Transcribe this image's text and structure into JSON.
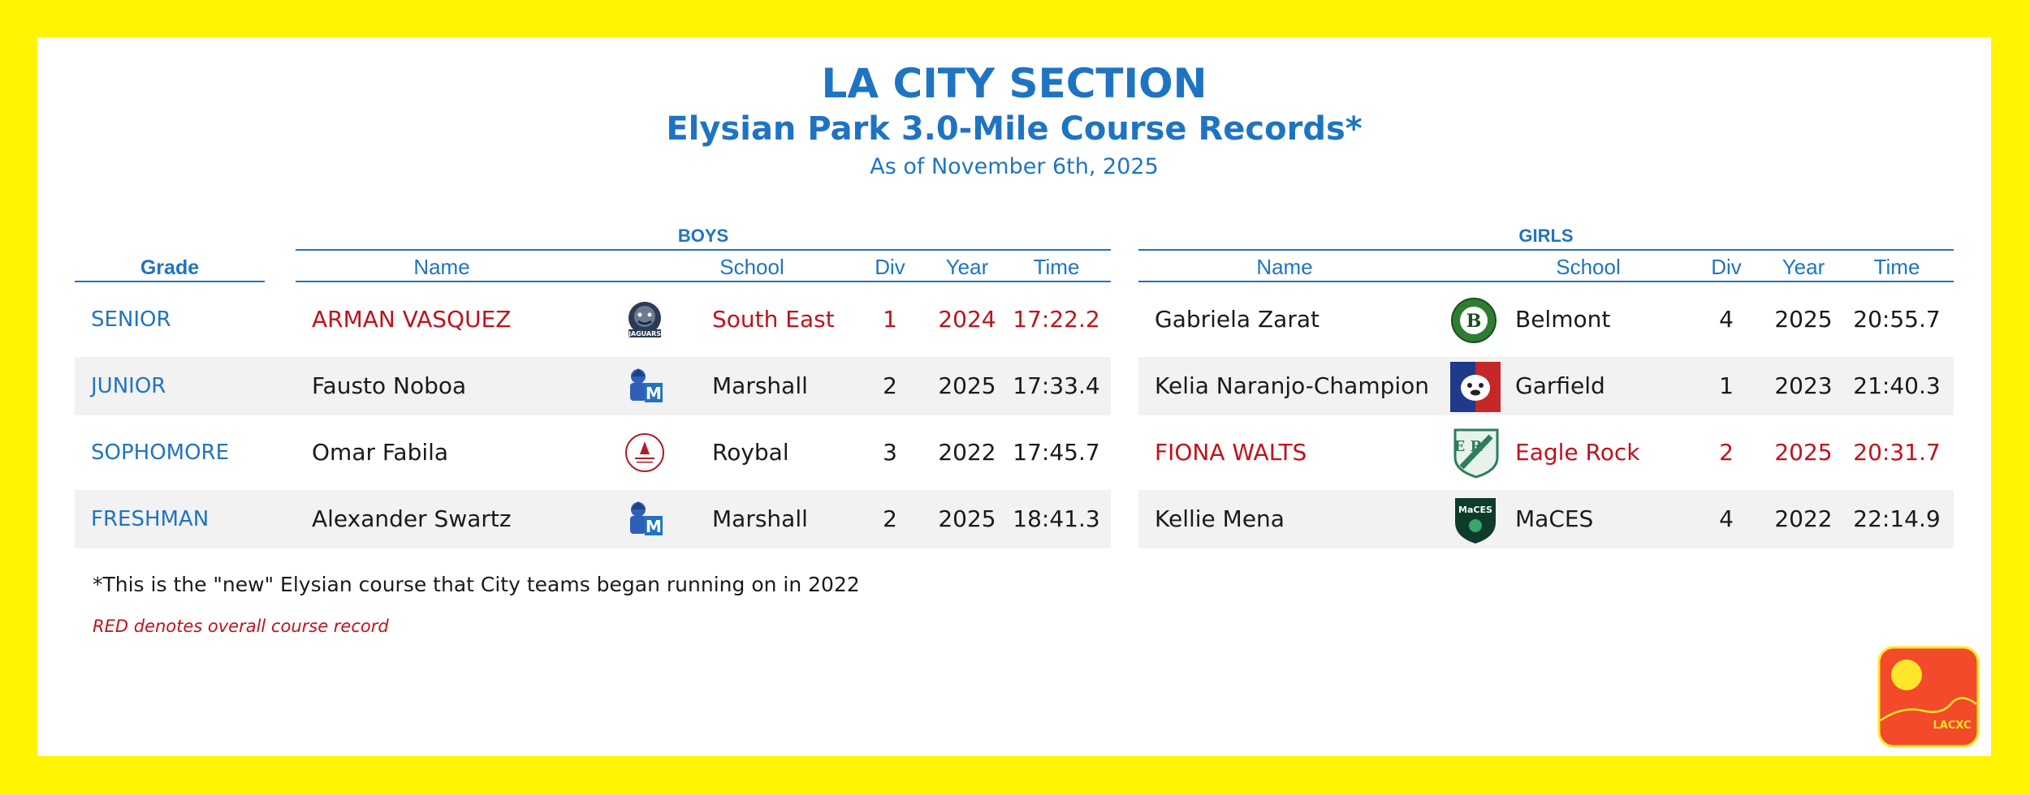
{
  "header": {
    "title": "LA CITY SECTION",
    "subtitle": "Elysian Park 3.0-Mile Course Records*",
    "date": "As of November 6th, 2025"
  },
  "columns": {
    "grade": "Grade",
    "name": "Name",
    "school": "School",
    "div": "Div",
    "year": "Year",
    "time": "Time"
  },
  "boys": {
    "heading": "BOYS",
    "rows": [
      {
        "grade": "SENIOR",
        "name": "ARMAN VASQUEZ",
        "school": "South East",
        "div": "1",
        "year": "2024",
        "time": "17:22.2",
        "logo_icon": "jaguars-logo-icon",
        "record": true
      },
      {
        "grade": "JUNIOR",
        "name": "Fausto Noboa",
        "school": "Marshall",
        "div": "2",
        "year": "2025",
        "time": "17:33.4",
        "logo_icon": "marshall-logo-icon",
        "record": false
      },
      {
        "grade": "SOPHOMORE",
        "name": "Omar Fabila",
        "school": "Roybal",
        "div": "3",
        "year": "2022",
        "time": "17:45.7",
        "logo_icon": "roybal-logo-icon",
        "record": false
      },
      {
        "grade": "FRESHMAN",
        "name": "Alexander Swartz",
        "school": "Marshall",
        "div": "2",
        "year": "2025",
        "time": "18:41.3",
        "logo_icon": "marshall-logo-icon",
        "record": false
      }
    ]
  },
  "girls": {
    "heading": "GIRLS",
    "rows": [
      {
        "name": "Gabriela Zarat",
        "school": "Belmont",
        "div": "4",
        "year": "2025",
        "time": "20:55.7",
        "logo_icon": "belmont-logo-icon",
        "record": false
      },
      {
        "name": "Kelia Naranjo-Champion",
        "school": "Garfield",
        "div": "1",
        "year": "2023",
        "time": "21:40.3",
        "logo_icon": "garfield-logo-icon",
        "record": false
      },
      {
        "name": "FIONA WALTS",
        "school": "Eagle Rock",
        "div": "2",
        "year": "2025",
        "time": "20:31.7",
        "logo_icon": "eagle-rock-logo-icon",
        "record": true
      },
      {
        "name": "Kellie Mena",
        "school": "MaCES",
        "div": "4",
        "year": "2022",
        "time": "22:14.9",
        "logo_icon": "maces-logo-icon",
        "record": false
      }
    ]
  },
  "logo_text": {
    "jaguars": "JAGUARS",
    "marshall": "M",
    "belmont": "B",
    "eagle_rock": "E R",
    "maces": "MaCES",
    "brand": "LACXC"
  },
  "footnote": "*This is the \"new\" Elysian course that City teams began running on in 2022",
  "legend_note": "RED denotes overall course record",
  "colors": {
    "frame": "#FFF500",
    "accent": "#1F74C2",
    "record": "#C0121B",
    "shade": "#F2F2F2",
    "brand_bg": "#F24A2A",
    "brand_sun": "#FFE629"
  }
}
